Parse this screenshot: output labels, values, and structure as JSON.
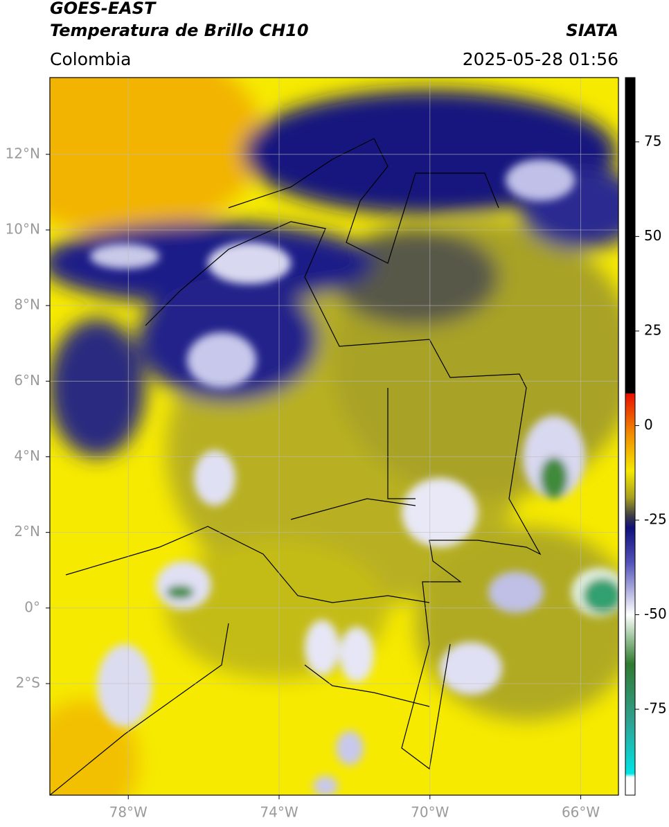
{
  "header": {
    "title": "GOES-EAST",
    "subtitle": "Temperatura de Brillo CH10",
    "source": "SIATA",
    "region": "Colombia",
    "timestamp": "2025-05-28 01:56"
  },
  "chart_data": {
    "type": "map",
    "xlim": [
      -80.08,
      -65
    ],
    "ylim": [
      -4.95,
      14.03
    ],
    "xticks": [
      {
        "value": -78,
        "label": "78°W"
      },
      {
        "value": -74,
        "label": "74°W"
      },
      {
        "value": -70,
        "label": "70°W"
      },
      {
        "value": -66,
        "label": "66°W"
      }
    ],
    "yticks": [
      {
        "value": 12,
        "label": "12°N"
      },
      {
        "value": 10,
        "label": "10°N"
      },
      {
        "value": 8,
        "label": "8°N"
      },
      {
        "value": 6,
        "label": "6°N"
      },
      {
        "value": 4,
        "label": "4°N"
      },
      {
        "value": 2,
        "label": "2°N"
      },
      {
        "value": 0,
        "label": "0°"
      },
      {
        "value": -2,
        "label": "2°S"
      }
    ],
    "grid": true,
    "colorbar": {
      "lim": [
        -97.7,
        92
      ],
      "ticks": [
        75,
        50,
        25,
        0,
        -25,
        -50,
        -75
      ],
      "stops": [
        {
          "value": 92,
          "color": "#000000"
        },
        {
          "value": 8.6,
          "color": "#000000"
        },
        {
          "value": 8.4,
          "color": "#e81000"
        },
        {
          "value": -2,
          "color": "#f08a00"
        },
        {
          "value": -12,
          "color": "#f4e800"
        },
        {
          "value": -19,
          "color": "#a8a020"
        },
        {
          "value": -24,
          "color": "#3a3a48"
        },
        {
          "value": -27,
          "color": "#10107a"
        },
        {
          "value": -36,
          "color": "#5050b8"
        },
        {
          "value": -50,
          "color": "#ffffff"
        },
        {
          "value": -56,
          "color": "#9cc49c"
        },
        {
          "value": -63,
          "color": "#307a30"
        },
        {
          "value": -78,
          "color": "#30a090"
        },
        {
          "value": -92,
          "color": "#00e4e4"
        },
        {
          "value": -93,
          "color": "#ffffff"
        },
        {
          "value": -97.7,
          "color": "#ffffff"
        }
      ]
    }
  }
}
